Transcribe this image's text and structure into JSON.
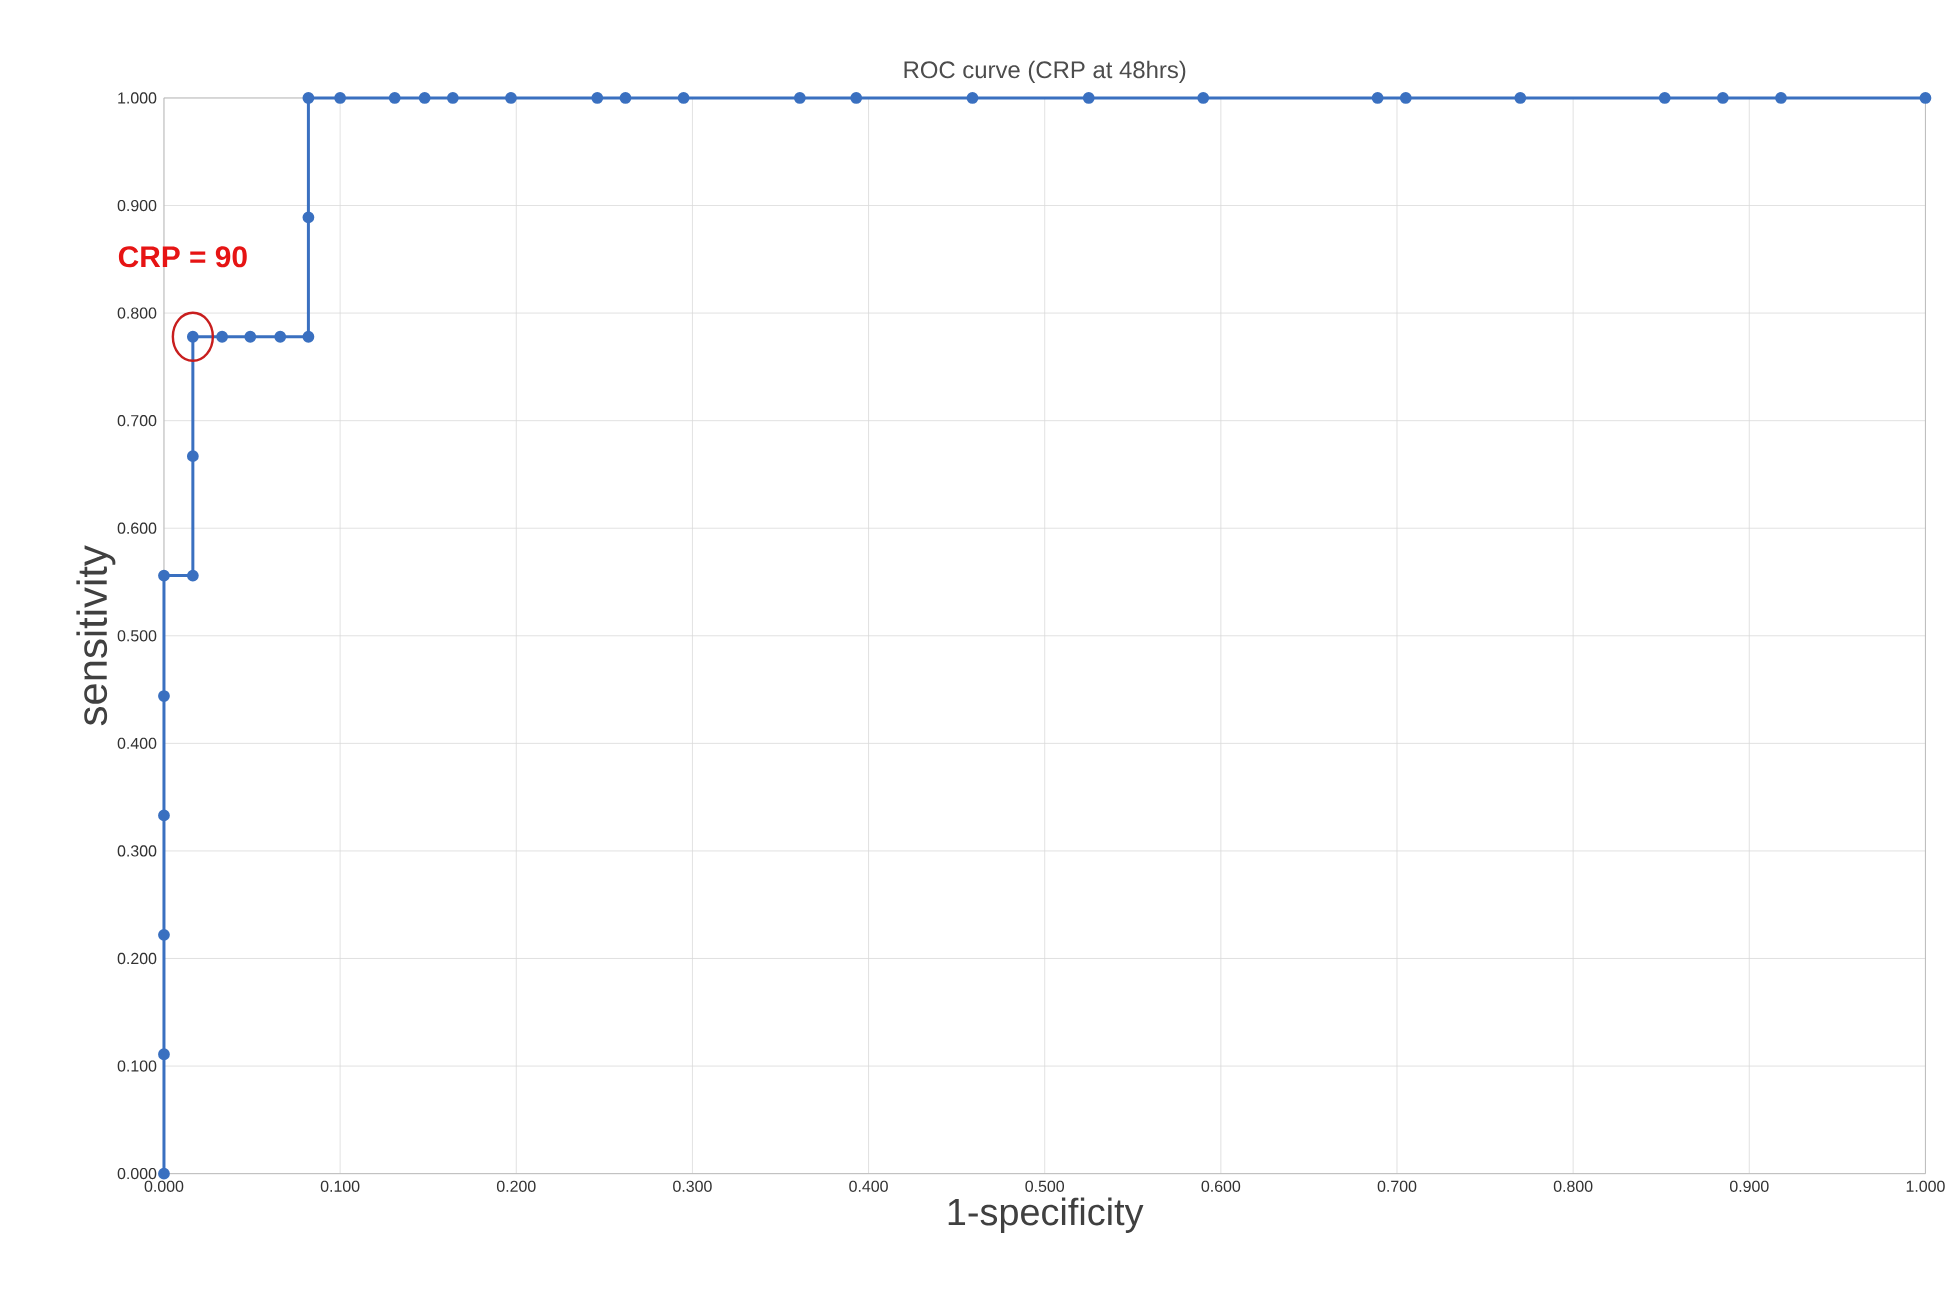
{
  "chart_data": {
    "type": "line",
    "title": "ROC curve (CRP at 48hrs)",
    "xlabel": "1-specificity",
    "ylabel": "sensitivity",
    "x": [
      0,
      0,
      0,
      0,
      0,
      0,
      0.0164,
      0.0164,
      0.0164,
      0.033,
      0.049,
      0.066,
      0.082,
      0.082,
      0.082,
      0.1,
      0.131,
      0.148,
      0.164,
      0.197,
      0.246,
      0.262,
      0.295,
      0.361,
      0.393,
      0.459,
      0.525,
      0.59,
      0.689,
      0.705,
      0.77,
      0.852,
      0.885,
      0.918,
      1.0
    ],
    "series": [
      {
        "color": "#3a70c0",
        "values": [
          0,
          0.111,
          0.222,
          0.333,
          0.444,
          0.556,
          0.556,
          0.667,
          0.778,
          0.778,
          0.778,
          0.778,
          0.778,
          0.889,
          1.0,
          1.0,
          1.0,
          1.0,
          1.0,
          1.0,
          1.0,
          1.0,
          1.0,
          1.0,
          1.0,
          1.0,
          1.0,
          1.0,
          1.0,
          1.0,
          1.0,
          1.0,
          1.0,
          1.0,
          1.0
        ]
      }
    ],
    "xlim": [
      0,
      1
    ],
    "ylim": [
      0,
      1
    ],
    "xticks": [
      {
        "value": 0,
        "label": "0.000"
      },
      {
        "value": 0.1,
        "label": "0.100"
      },
      {
        "value": 0.2,
        "label": "0.200"
      },
      {
        "value": 0.3,
        "label": "0.300"
      },
      {
        "value": 0.4,
        "label": "0.400"
      },
      {
        "value": 0.5,
        "label": "0.500"
      },
      {
        "value": 0.6,
        "label": "0.600"
      },
      {
        "value": 0.7,
        "label": "0.700"
      },
      {
        "value": 0.8,
        "label": "0.800"
      },
      {
        "value": 0.9,
        "label": "0.900"
      },
      {
        "value": 1,
        "label": "1.000"
      }
    ],
    "yticks": [
      {
        "value": 0,
        "label": "0.000"
      },
      {
        "value": 0.1,
        "label": "0.100"
      },
      {
        "value": 0.2,
        "label": "0.200"
      },
      {
        "value": 0.3,
        "label": "0.300"
      },
      {
        "value": 0.4,
        "label": "0.400"
      },
      {
        "value": 0.5,
        "label": "0.500"
      },
      {
        "value": 0.6,
        "label": "0.600"
      },
      {
        "value": 0.7,
        "label": "0.700"
      },
      {
        "value": 0.8,
        "label": "0.800"
      },
      {
        "value": 0.9,
        "label": "0.900"
      },
      {
        "value": 1,
        "label": "1.000"
      }
    ],
    "grid": true,
    "marker": "circle",
    "line_style": "solid",
    "annotations": [
      {
        "text": "CRP = 90",
        "x": 0.0164,
        "y": 0.778
      }
    ]
  }
}
